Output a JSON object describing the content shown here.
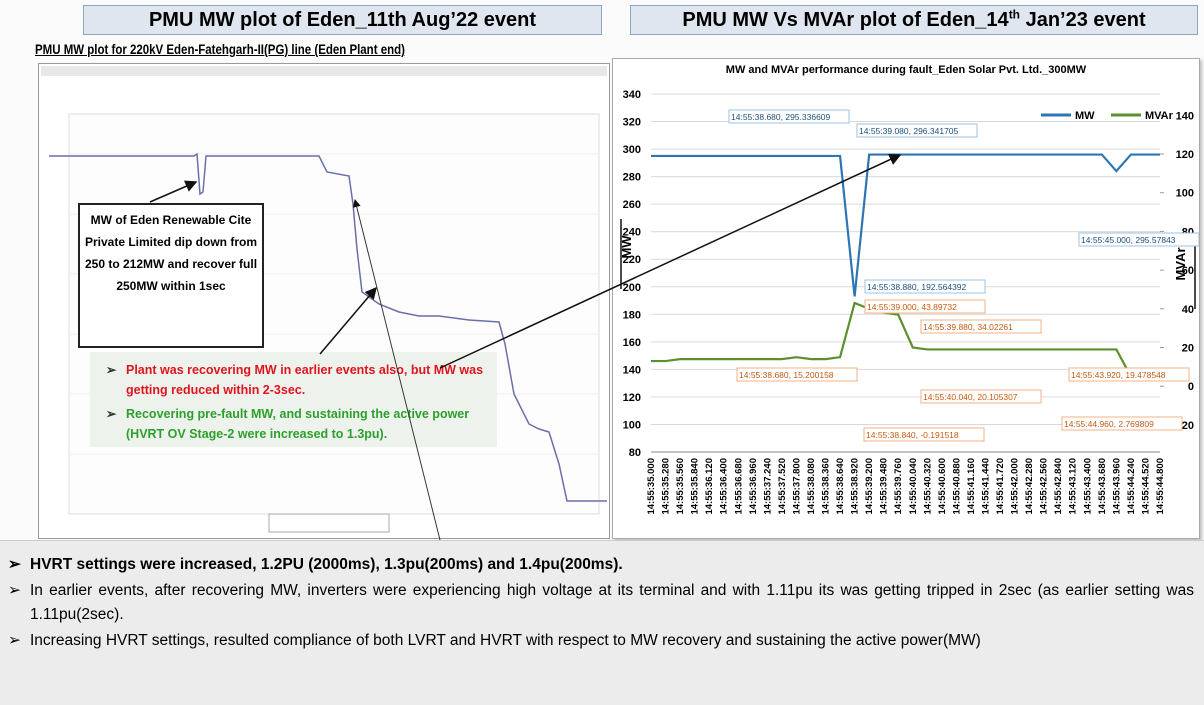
{
  "left_panel": {
    "title": "PMU MW plot of Eden_11th Aug’22 event",
    "subtitle": "PMU MW plot for 220kV Eden-Fatehgarh-II(PG) line (Eden Plant end)",
    "callout": "MW of Eden Renewable Cite Private Limited dip down from 250 to 212MW and recover full 250MW within 1sec",
    "notes": [
      "Plant was recovering MW in earlier events also, but MW was getting reduced within 2-3sec.",
      "Recovering pre-fault MW, and sustaining the active power (HVRT OV Stage-2 were increased to 1.3pu)."
    ]
  },
  "right_title": [
    "PMU MW Vs MVAr plot of Eden_14",
    "th",
    " Jan’23 event"
  ],
  "chart_data": {
    "type": "line",
    "title": "MW and MVAr performance during fault_Eden Solar Pvt. Ltd._300MW",
    "ylabel": "MW",
    "y2label": "MVAr",
    "categories": [
      "14:55:35.000",
      "14:55:35.280",
      "14:55:35.560",
      "14:55:35.840",
      "14:55:36.120",
      "14:55:36.400",
      "14:55:36.680",
      "14:55:36.960",
      "14:55:37.240",
      "14:55:37.520",
      "14:55:37.800",
      "14:55:38.080",
      "14:55:38.360",
      "14:55:38.640",
      "14:55:38.920",
      "14:55:39.200",
      "14:55:39.480",
      "14:55:39.760",
      "14:55:40.040",
      "14:55:40.320",
      "14:55:40.600",
      "14:55:40.880",
      "14:55:41.160",
      "14:55:41.440",
      "14:55:41.720",
      "14:55:42.000",
      "14:55:42.280",
      "14:55:42.560",
      "14:55:42.840",
      "14:55:43.120",
      "14:55:43.400",
      "14:55:43.680",
      "14:55:43.960",
      "14:55:44.240",
      "14:55:44.520",
      "14:55:44.800"
    ],
    "series": [
      {
        "name": "MW",
        "color": "#2e75b6",
        "values": [
          295,
          295,
          295,
          295,
          295,
          295,
          295,
          295,
          295,
          295,
          295,
          295,
          295,
          295,
          193,
          296,
          296,
          296,
          296,
          296,
          296,
          296,
          296,
          296,
          296,
          296,
          296,
          296,
          296,
          296,
          296,
          296,
          284,
          296,
          296,
          296
        ]
      },
      {
        "name": "MVAr",
        "color": "#5e8f2f",
        "axis": "y2",
        "values": [
          13,
          13,
          14,
          14,
          14,
          14,
          14,
          14,
          14,
          14,
          15,
          14,
          14,
          15,
          43,
          40,
          38,
          37,
          20,
          19,
          19,
          19,
          19,
          19,
          19,
          19,
          19,
          19,
          19,
          19,
          19,
          19,
          19,
          5,
          3,
          3
        ]
      }
    ],
    "ylim": [
      80,
      340
    ],
    "yticks": [
      80,
      100,
      120,
      140,
      160,
      180,
      200,
      220,
      240,
      260,
      280,
      300,
      320,
      340
    ],
    "y2lim": [
      -34,
      151
    ],
    "y2ticks": [
      -20,
      0,
      20,
      40,
      60,
      80,
      100,
      120,
      140
    ],
    "annotations": [
      "14:55:38.680, 295.336609",
      "14:55:39.080, 296.341705",
      "14:55:45.000, 295.57843",
      "14:55:38.880, 192.564392",
      "14:55:39.000, 43.89732",
      "14:55:39.880, 34.02261",
      "14:55:38.680, 15.200158",
      "14:55:43.920, 19.478548",
      "14:55:40.040, 20.105307",
      "14:55:38.840, -0.191518",
      "14:55:44.960, 2.769809"
    ],
    "legend": "top-right",
    "grid": true
  },
  "bullets": [
    "HVRT settings were increased, 1.2PU (2000ms), 1.3pu(200ms) and 1.4pu(200ms).",
    "In earlier events, after recovering MW, inverters were experiencing high voltage at its terminal and with 1.11pu its was getting tripped in 2sec (as earlier setting was 1.11pu(2sec).",
    "Increasing HVRT settings, resulted compliance of both LVRT and HVRT with respect to MW recovery and sustaining the active power(MW)"
  ]
}
